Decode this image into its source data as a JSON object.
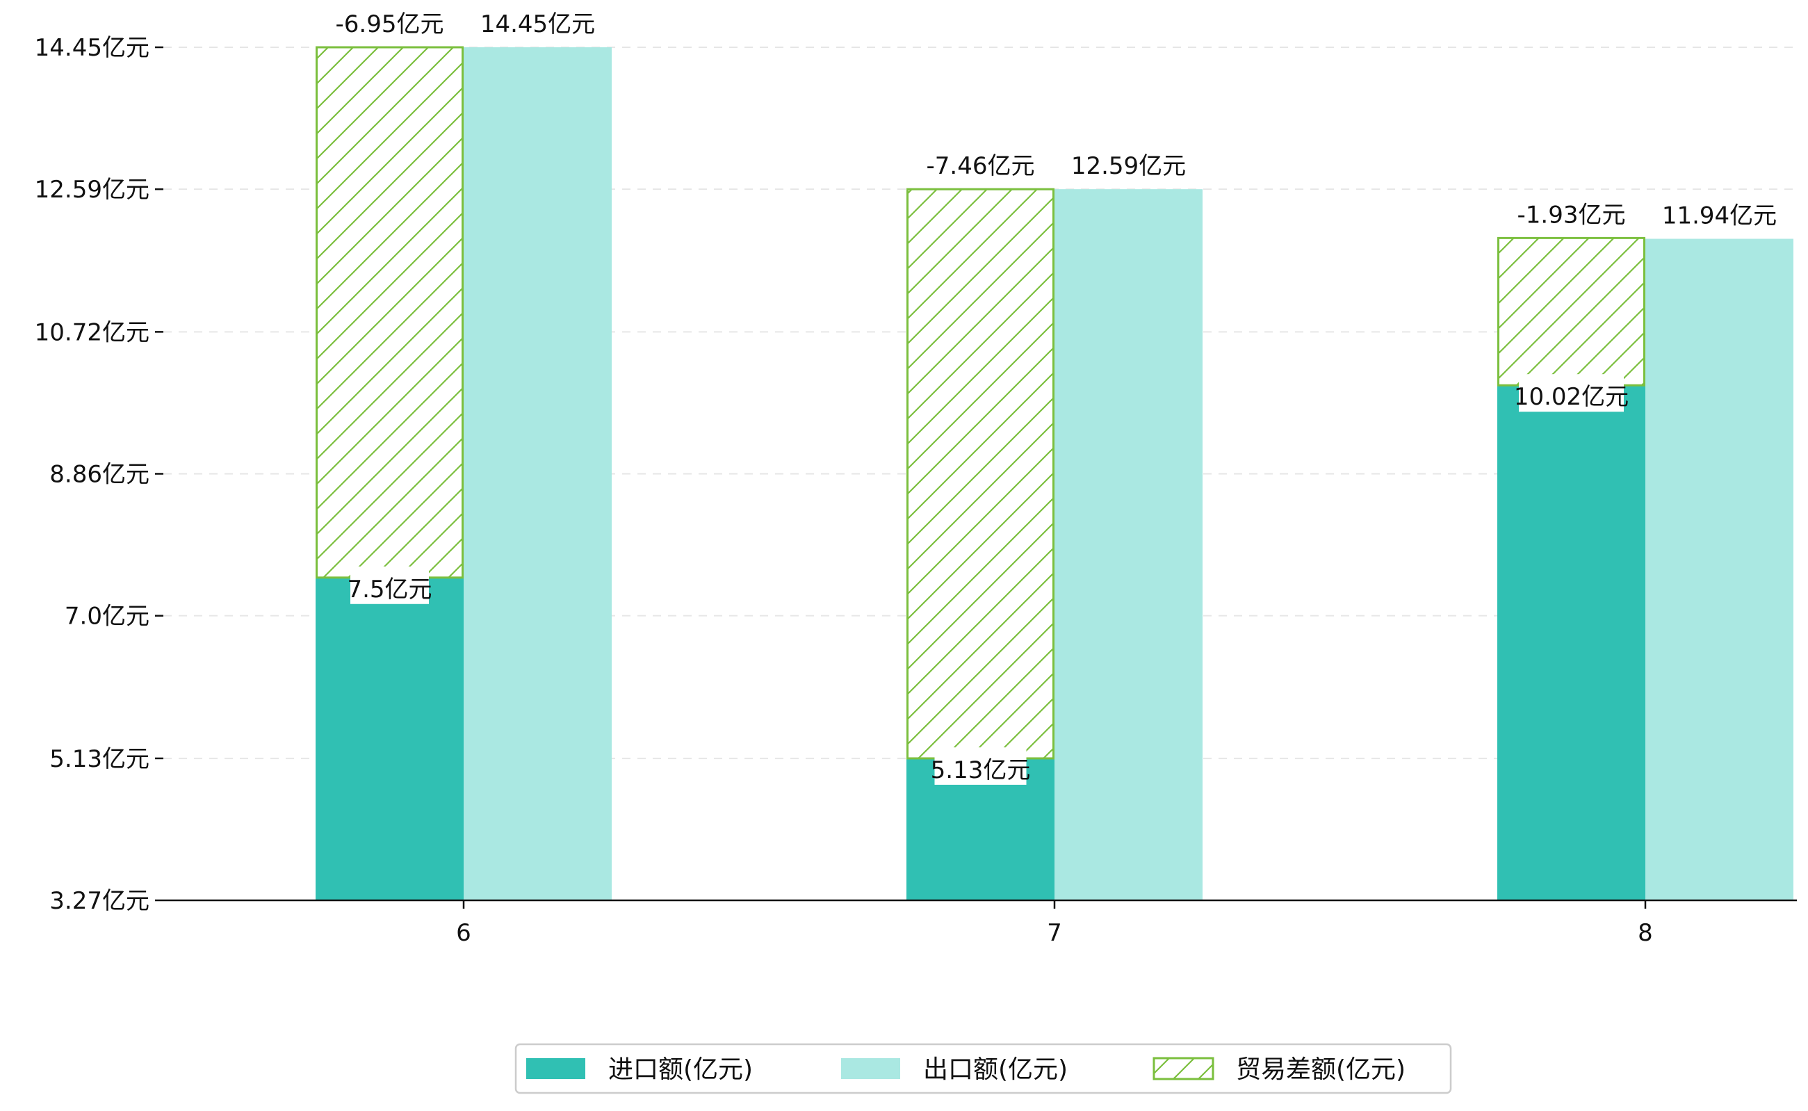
{
  "chart_data": {
    "type": "bar",
    "categories": [
      "6",
      "7",
      "8"
    ],
    "series": [
      {
        "name": "进口额(亿元)",
        "values": [
          7.5,
          5.13,
          10.02
        ],
        "labels": [
          "7.5亿元",
          "5.13亿元",
          "10.02亿元"
        ],
        "color": "#30c0b3"
      },
      {
        "name": "出口额(亿元)",
        "values": [
          14.45,
          12.59,
          11.94
        ],
        "labels": [
          "14.45亿元",
          "12.59亿元",
          "11.94亿元"
        ],
        "color": "#aae8e2"
      },
      {
        "name": "贸易差额(亿元)",
        "values": [
          -6.95,
          -7.46,
          -1.93
        ],
        "labels": [
          "-6.95亿元",
          "-7.46亿元",
          "-1.93亿元"
        ],
        "color": "#7bbf3e",
        "hatched": true,
        "stacked_on": "进口额(亿元)"
      }
    ],
    "yticks": [
      3.27,
      5.13,
      7.0,
      8.86,
      10.72,
      12.59,
      14.45
    ],
    "ytick_labels": [
      "3.27亿元",
      "5.13亿元",
      "7.0亿元",
      "8.86亿元",
      "10.72亿元",
      "12.59亿元",
      "14.45亿元"
    ],
    "ylim": [
      3.27,
      14.45
    ],
    "title": "",
    "xlabel": "",
    "ylabel": "",
    "grid": "y-dashed",
    "legend_position": "bottom-center"
  }
}
